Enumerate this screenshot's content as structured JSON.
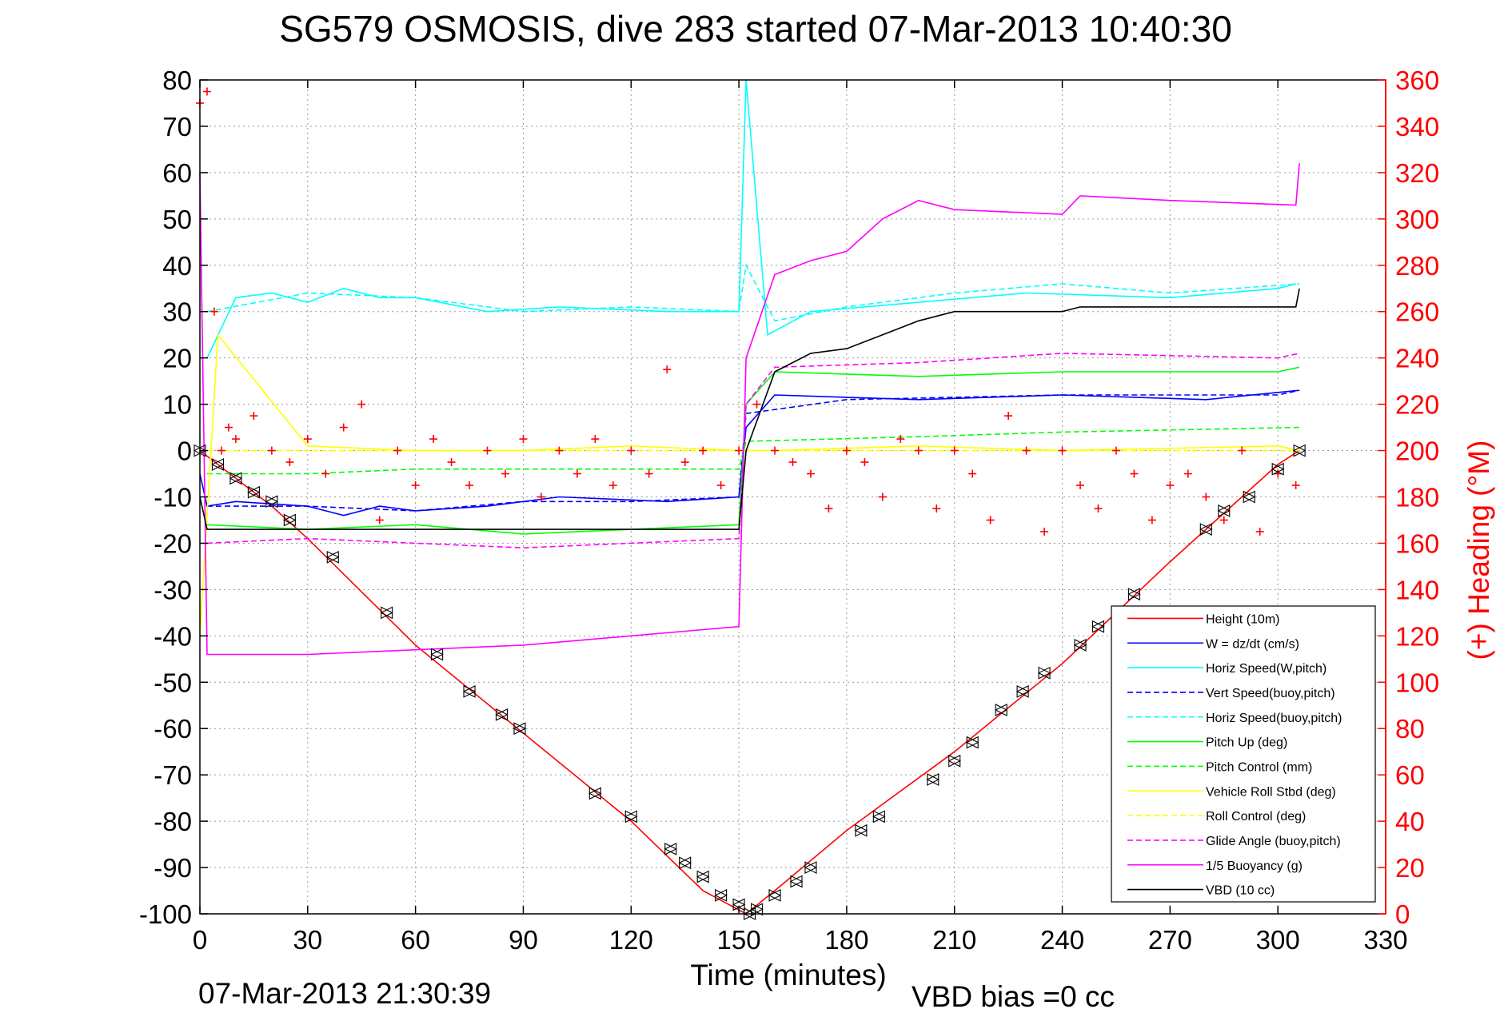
{
  "chart_data": {
    "type": "line",
    "title": "SG579 OSMOSIS, dive 283 started 07-Mar-2013 10:40:30",
    "xlabel": "Time (minutes)",
    "ylabel": "",
    "y2label": "(+) Heading (°M)",
    "xlim": [
      0,
      330
    ],
    "ylim": [
      -100,
      80
    ],
    "y2lim": [
      0,
      360
    ],
    "xticks": [
      "0",
      "30",
      "60",
      "90",
      "120",
      "150",
      "180",
      "210",
      "240",
      "270",
      "300",
      "330"
    ],
    "yticks": [
      "80",
      "70",
      "60",
      "50",
      "40",
      "30",
      "20",
      "10",
      "0",
      "-10",
      "-20",
      "-30",
      "-40",
      "-50",
      "-60",
      "-70",
      "-80",
      "-90",
      "-100"
    ],
    "y2ticks": [
      "360",
      "340",
      "320",
      "300",
      "280",
      "260",
      "240",
      "220",
      "200",
      "180",
      "160",
      "140",
      "120",
      "100",
      "80",
      "60",
      "40",
      "20",
      "0"
    ],
    "grid": true,
    "legend_position": "bottom-right",
    "footer_left": "07-Mar-2013 21:30:39",
    "footer_right": "VBD bias =0 cc",
    "colors": {
      "height": "#ff0000",
      "w": "#0000ff",
      "horiz_speed": "#00ffff",
      "pitch": "#00ff00",
      "roll": "#ffff00",
      "glide": "#ff00ff",
      "vbd": "#000000",
      "heading": "#ff0000"
    },
    "series": [
      {
        "name": "Height (10m)",
        "style": "solid",
        "color": "#ff0000",
        "x": [
          0,
          5,
          20,
          30,
          60,
          90,
          120,
          140,
          152,
          160,
          180,
          210,
          240,
          270,
          300,
          306
        ],
        "y": [
          0,
          -3,
          -12,
          -19,
          -42,
          -61,
          -80,
          -95,
          -100,
          -95,
          -82,
          -65,
          -46,
          -24,
          -3,
          0
        ]
      },
      {
        "name": "W = dz/dt (cm/s)",
        "style": "solid",
        "color": "#0000ff",
        "x": [
          0,
          2,
          10,
          30,
          40,
          50,
          60,
          80,
          100,
          130,
          150,
          152,
          160,
          200,
          240,
          280,
          306
        ],
        "y": [
          -5,
          -12,
          -11,
          -12,
          -14,
          -12,
          -13,
          -12,
          -10,
          -11,
          -10,
          5,
          12,
          11,
          12,
          11,
          13
        ]
      },
      {
        "name": "Horiz Speed(W,pitch)",
        "style": "solid",
        "color": "#00ffff",
        "x": [
          2,
          10,
          20,
          30,
          40,
          50,
          60,
          80,
          100,
          130,
          150,
          152,
          158,
          170,
          200,
          230,
          270,
          300,
          305
        ],
        "y": [
          20,
          33,
          34,
          32,
          35,
          33,
          33,
          30,
          31,
          30,
          30,
          80,
          25,
          30,
          32,
          34,
          33,
          35,
          36
        ]
      },
      {
        "name": "Vert Speed(buoy,pitch)",
        "style": "dashed",
        "color": "#0000ff",
        "x": [
          2,
          30,
          60,
          90,
          120,
          150,
          152,
          180,
          240,
          300,
          306
        ],
        "y": [
          -12,
          -12,
          -13,
          -11,
          -11,
          -10,
          8,
          11,
          12,
          12,
          13
        ]
      },
      {
        "name": "Horiz Speed(buoy,pitch)",
        "style": "dashed",
        "color": "#00ffff",
        "x": [
          2,
          30,
          60,
          90,
          120,
          150,
          152,
          160,
          180,
          210,
          240,
          270,
          306
        ],
        "y": [
          30,
          34,
          33,
          30,
          31,
          30,
          40,
          28,
          31,
          34,
          36,
          34,
          36
        ]
      },
      {
        "name": "Pitch Up (deg)",
        "style": "solid",
        "color": "#00ff00",
        "x": [
          2,
          30,
          60,
          90,
          120,
          150,
          152,
          160,
          200,
          240,
          300,
          306
        ],
        "y": [
          -16,
          -17,
          -16,
          -18,
          -17,
          -16,
          10,
          17,
          16,
          17,
          17,
          18
        ]
      },
      {
        "name": "Pitch Control (mm)",
        "style": "dashed",
        "color": "#00ff00",
        "x": [
          2,
          30,
          60,
          150,
          152,
          200,
          240,
          306
        ],
        "y": [
          -5,
          -5,
          -4,
          -4,
          2,
          3,
          4,
          5
        ]
      },
      {
        "name": "Vehicle Roll Stbd (deg)",
        "style": "solid",
        "color": "#ffff00",
        "x": [
          0,
          5,
          30,
          60,
          90,
          120,
          150,
          160,
          200,
          240,
          300,
          306
        ],
        "y": [
          -40,
          25,
          1,
          0,
          0,
          1,
          0,
          0,
          1,
          0,
          1,
          0
        ]
      },
      {
        "name": "Roll Control (deg)",
        "style": "dashed",
        "color": "#ffff00",
        "x": [
          2,
          150,
          152,
          306
        ],
        "y": [
          0,
          0,
          0,
          0
        ]
      },
      {
        "name": "Glide Angle (buoy,pitch)",
        "style": "dashed",
        "color": "#ff00ff",
        "x": [
          2,
          30,
          60,
          90,
          120,
          150,
          152,
          160,
          200,
          240,
          300,
          306
        ],
        "y": [
          -20,
          -19,
          -20,
          -21,
          -20,
          -19,
          10,
          18,
          19,
          21,
          20,
          21
        ]
      },
      {
        "name": "1/5 Buoyancy (g)",
        "style": "solid",
        "color": "#ff00ff",
        "x": [
          0,
          2,
          30,
          60,
          90,
          120,
          150,
          152,
          160,
          170,
          180,
          190,
          200,
          210,
          240,
          245,
          270,
          305,
          306
        ],
        "y": [
          60,
          -44,
          -44,
          -43,
          -42,
          -40,
          -38,
          20,
          38,
          41,
          43,
          50,
          54,
          52,
          51,
          55,
          54,
          53,
          62
        ]
      },
      {
        "name": "VBD (10 cc)",
        "style": "solid",
        "color": "#000000",
        "x": [
          0,
          2,
          150,
          152,
          160,
          170,
          180,
          190,
          200,
          210,
          240,
          245,
          270,
          305,
          306
        ],
        "y": [
          -10,
          -17,
          -17,
          0,
          17,
          21,
          22,
          25,
          28,
          30,
          30,
          31,
          31,
          31,
          35
        ]
      }
    ],
    "heading": {
      "name": "(+) Heading (°M)",
      "marker": "+",
      "x": [
        0,
        2,
        4,
        6,
        8,
        10,
        15,
        20,
        25,
        30,
        35,
        40,
        45,
        50,
        55,
        60,
        65,
        70,
        75,
        80,
        85,
        90,
        95,
        100,
        105,
        110,
        115,
        120,
        125,
        130,
        135,
        140,
        145,
        150,
        155,
        160,
        165,
        170,
        175,
        180,
        185,
        190,
        195,
        200,
        205,
        210,
        215,
        220,
        225,
        230,
        235,
        240,
        245,
        250,
        255,
        260,
        265,
        270,
        275,
        280,
        285,
        290,
        295,
        300,
        305
      ],
      "y": [
        350,
        355,
        260,
        200,
        210,
        205,
        215,
        200,
        195,
        205,
        190,
        210,
        220,
        170,
        200,
        185,
        205,
        195,
        185,
        200,
        190,
        205,
        180,
        200,
        190,
        205,
        185,
        200,
        190,
        235,
        195,
        200,
        185,
        200,
        220,
        200,
        195,
        190,
        175,
        200,
        195,
        180,
        205,
        200,
        175,
        200,
        190,
        170,
        215,
        200,
        165,
        200,
        185,
        175,
        200,
        190,
        170,
        185,
        190,
        180,
        170,
        200,
        165,
        190,
        185
      ]
    },
    "height_markers": {
      "marker": "triangle",
      "x": [
        0,
        5,
        10,
        15,
        20,
        25,
        37,
        52,
        66,
        75,
        84,
        89,
        110,
        120,
        131,
        135,
        140,
        145,
        150,
        153,
        155,
        160,
        166,
        170,
        184,
        189,
        204,
        210,
        215,
        223,
        229,
        235,
        245,
        250,
        260,
        280,
        285,
        292,
        300,
        306
      ],
      "y": [
        0,
        -3,
        -6,
        -9,
        -11,
        -15,
        -23,
        -35,
        -44,
        -52,
        -57,
        -60,
        -74,
        -79,
        -86,
        -89,
        -92,
        -96,
        -98,
        -100,
        -99,
        -96,
        -93,
        -90,
        -82,
        -79,
        -71,
        -67,
        -63,
        -56,
        -52,
        -48,
        -42,
        -38,
        -31,
        -17,
        -13,
        -10,
        -4,
        0
      ]
    },
    "legend": [
      {
        "label": "Height (10m)",
        "color": "#ff0000",
        "style": "solid"
      },
      {
        "label": "W = dz/dt (cm/s)",
        "color": "#0000ff",
        "style": "solid"
      },
      {
        "label": "Horiz Speed(W,pitch)",
        "color": "#00ffff",
        "style": "solid"
      },
      {
        "label": "Vert Speed(buoy,pitch)",
        "color": "#0000ff",
        "style": "dashed"
      },
      {
        "label": "Horiz Speed(buoy,pitch)",
        "color": "#00ffff",
        "style": "dashed"
      },
      {
        "label": "Pitch Up (deg)",
        "color": "#00ff00",
        "style": "solid"
      },
      {
        "label": "Pitch Control (mm)",
        "color": "#00ff00",
        "style": "dashed"
      },
      {
        "label": "Vehicle Roll Stbd (deg)",
        "color": "#ffff00",
        "style": "solid"
      },
      {
        "label": "Roll Control (deg)",
        "color": "#ffff00",
        "style": "dashed"
      },
      {
        "label": "Glide Angle (buoy,pitch)",
        "color": "#ff00ff",
        "style": "dashed"
      },
      {
        "label": "1/5 Buoyancy (g)",
        "color": "#ff00ff",
        "style": "solid"
      },
      {
        "label": "VBD (10 cc)",
        "color": "#000000",
        "style": "solid"
      }
    ]
  }
}
